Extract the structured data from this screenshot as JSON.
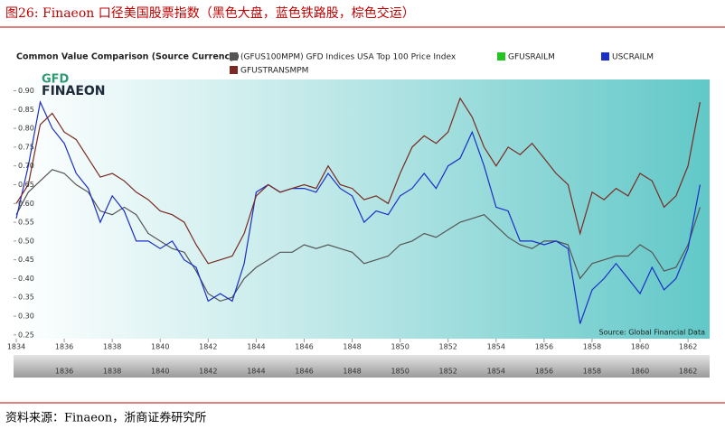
{
  "header": "图26:  Finaeon 口径美国股票指数（黑色大盘，蓝色铁路股，棕色交运）",
  "footer": "资料来源：Finaeon，浙商证券研究所",
  "chart_data": {
    "type": "line",
    "title": "Common Value Comparison (Source Currency)",
    "logo": [
      "GFD",
      "FINAEON"
    ],
    "source": "Source: Global Financial Data",
    "x": [
      1834,
      1834.5,
      1835,
      1835.5,
      1836,
      1836.5,
      1837,
      1837.5,
      1838,
      1838.5,
      1839,
      1839.5,
      1840,
      1840.5,
      1841,
      1841.5,
      1842,
      1842.5,
      1843,
      1843.5,
      1844,
      1844.5,
      1845,
      1845.5,
      1846,
      1846.5,
      1847,
      1847.5,
      1848,
      1848.5,
      1849,
      1849.5,
      1850,
      1850.5,
      1851,
      1851.5,
      1852,
      1852.5,
      1853,
      1853.5,
      1854,
      1854.5,
      1855,
      1855.5,
      1856,
      1856.5,
      1857,
      1857.5,
      1858,
      1858.5,
      1859,
      1859.5,
      1860,
      1860.5,
      1861,
      1861.5,
      1862,
      1862.5
    ],
    "series": [
      {
        "name": "(GFUS100MPM) GFD Indices USA Top 100 Price Index",
        "color": "#555555",
        "values": [
          0.57,
          0.63,
          0.66,
          0.69,
          0.68,
          0.65,
          0.63,
          0.58,
          0.57,
          0.59,
          0.57,
          0.52,
          0.5,
          0.48,
          0.47,
          0.42,
          0.36,
          0.34,
          0.35,
          0.4,
          0.43,
          0.45,
          0.47,
          0.47,
          0.49,
          0.48,
          0.49,
          0.48,
          0.47,
          0.44,
          0.45,
          0.46,
          0.49,
          0.5,
          0.52,
          0.51,
          0.53,
          0.55,
          0.56,
          0.57,
          0.54,
          0.51,
          0.49,
          0.48,
          0.5,
          0.5,
          0.49,
          0.4,
          0.44,
          0.45,
          0.46,
          0.46,
          0.49,
          0.47,
          0.42,
          0.43,
          0.49,
          0.59
        ]
      },
      {
        "name": "GFUSRAILM",
        "color": "#22c322"
      },
      {
        "name": "USCRAILM",
        "color": "#1a2fc4",
        "values": [
          0.56,
          0.7,
          0.87,
          0.8,
          0.76,
          0.68,
          0.64,
          0.55,
          0.62,
          0.58,
          0.5,
          0.5,
          0.48,
          0.5,
          0.45,
          0.43,
          0.34,
          0.36,
          0.34,
          0.44,
          0.63,
          0.65,
          0.63,
          0.64,
          0.64,
          0.63,
          0.68,
          0.64,
          0.62,
          0.55,
          0.58,
          0.57,
          0.62,
          0.64,
          0.68,
          0.64,
          0.7,
          0.72,
          0.79,
          0.7,
          0.59,
          0.58,
          0.5,
          0.5,
          0.49,
          0.5,
          0.48,
          0.28,
          0.37,
          0.4,
          0.44,
          0.4,
          0.36,
          0.43,
          0.37,
          0.4,
          0.48,
          0.65
        ]
      },
      {
        "name": "GFUSTRANSMPM",
        "color": "#7a2a22",
        "values": [
          0.6,
          0.65,
          0.81,
          0.84,
          0.79,
          0.77,
          0.72,
          0.67,
          0.68,
          0.66,
          0.63,
          0.61,
          0.58,
          0.57,
          0.55,
          0.49,
          0.44,
          0.45,
          0.46,
          0.52,
          0.62,
          0.65,
          0.63,
          0.64,
          0.65,
          0.64,
          0.7,
          0.65,
          0.64,
          0.61,
          0.62,
          0.6,
          0.68,
          0.75,
          0.78,
          0.76,
          0.79,
          0.88,
          0.83,
          0.75,
          0.7,
          0.75,
          0.73,
          0.76,
          0.72,
          0.68,
          0.65,
          0.52,
          0.63,
          0.61,
          0.64,
          0.62,
          0.68,
          0.66,
          0.59,
          0.62,
          0.7,
          0.87
        ]
      }
    ],
    "xlim": [
      1834,
      1862.9
    ],
    "xticks": [
      1834,
      1836,
      1838,
      1840,
      1842,
      1844,
      1846,
      1848,
      1850,
      1852,
      1854,
      1856,
      1858,
      1860,
      1862
    ],
    "ylim": [
      0.24,
      0.93
    ],
    "yticks": [
      0.25,
      {
        "value": 0.3,
        "label": "0.30"
      },
      0.35,
      {
        "value": 0.4,
        "label": "0.40"
      },
      0.45,
      {
        "value": 0.5,
        "label": "0.50"
      },
      0.55,
      {
        "value": 0.6,
        "label": "0.60"
      },
      0.65,
      {
        "value": 0.7,
        "label": "0.70"
      },
      0.75,
      {
        "value": 0.8,
        "label": "0.80"
      },
      0.85,
      {
        "value": 0.9,
        "label": "0.90"
      }
    ],
    "grid": false
  }
}
